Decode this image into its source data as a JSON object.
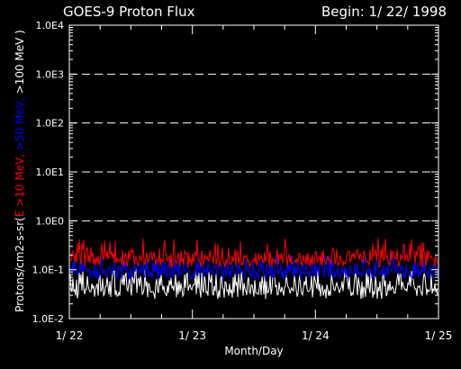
{
  "chart_data": {
    "type": "line",
    "title": "GOES-9 Proton Flux",
    "begin_label": "Begin: 1/ 22/ 1998",
    "xlabel": "Month/Day",
    "x_ticks": [
      "1/ 22",
      "1/ 23",
      "1/ 24",
      "1/ 25"
    ],
    "xlim": [
      "1998-01-22",
      "1998-01-25"
    ],
    "ylabel_parts": [
      {
        "text": "Protons/cm2-s-sr(",
        "color": "#ffffff"
      },
      {
        "text": "E >10 MeV, ",
        "color": "#ff0000"
      },
      {
        "text": ">50 MeV, ",
        "color": "#0000ff"
      },
      {
        "text": ">100 MeV )",
        "color": "#ffffff"
      }
    ],
    "y_scale": "log",
    "ylim": [
      0.01,
      10000
    ],
    "y_ticks": [
      "1.0E-2",
      "1.0E-1",
      "1.0E0",
      "1.0E1",
      "1.0E2",
      "1.0E3",
      "1.0E4"
    ],
    "grid": "horizontal dashed lines at 1.0E0 through 1.0E3",
    "series": [
      {
        "energy": "E >10 MeV",
        "color": "#ff0000",
        "typical": 0.18,
        "range": [
          0.11,
          0.45
        ]
      },
      {
        "energy": ">50 MeV",
        "color": "#0000ff",
        "typical": 0.1,
        "range": [
          0.06,
          0.2
        ]
      },
      {
        "energy": ">100 MeV",
        "color": "#ffffff",
        "typical": 0.05,
        "range": [
          0.025,
          0.1
        ]
      }
    ]
  }
}
